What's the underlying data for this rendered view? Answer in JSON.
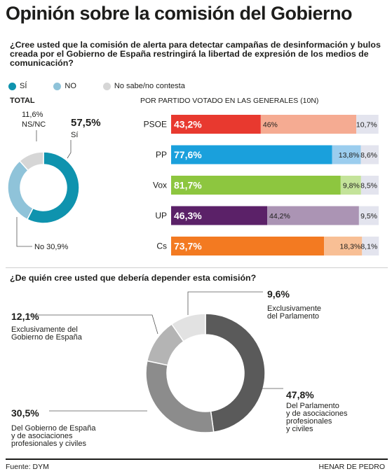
{
  "title": "Opinión sobre la comisión del Gobierno",
  "question1": "¿Cree usted que la comisión de alerta para detectar campañas de desinformación y bulos creada por el Gobierno de España restringirá la libertad de expresión de los medios de comunicación?",
  "legend": [
    {
      "label": "SÍ",
      "color": "#0f93ae"
    },
    {
      "label": "NO",
      "color": "#8fc3d9"
    },
    {
      "label": "No sabe/no contesta",
      "color": "#d6d6d6"
    }
  ],
  "total_label": "TOTAL",
  "party_header": "POR PARTIDO VOTADO EN LAS GENERALES (10N)",
  "question2": "¿De quién cree usted que debería depender esta comisión?",
  "source": "Fuente: DYM",
  "credit": "HENAR DE PEDRO",
  "chart_data": [
    {
      "type": "pie",
      "variant": "donut",
      "title": "TOTAL",
      "slices": [
        {
          "label": "Sí",
          "value": 57.5,
          "value_label": "57,5%",
          "color": "#0f93ae"
        },
        {
          "label": "No",
          "value": 30.9,
          "value_label": "30,9%",
          "color": "#8fc3d9"
        },
        {
          "label": "NS/NC",
          "value": 11.6,
          "value_label": "11,6%",
          "color": "#d6d6d6"
        }
      ]
    },
    {
      "type": "bar",
      "orientation": "horizontal",
      "stacked": true,
      "title": "POR PARTIDO VOTADO EN LAS GENERALES (10N)",
      "categories": [
        "PSOE",
        "PP",
        "Vox",
        "UP",
        "Cs"
      ],
      "series": [
        {
          "name": "Sí",
          "values": [
            43.2,
            77.6,
            81.7,
            46.3,
            73.7
          ],
          "labels": [
            "43,2%",
            "77,6%",
            "81,7%",
            "46,3%",
            "73,7%"
          ],
          "colors": [
            "#e8392f",
            "#1aa0dc",
            "#8dc63f",
            "#5b2168",
            "#f37a21"
          ]
        },
        {
          "name": "No",
          "values": [
            46.0,
            13.8,
            9.8,
            44.2,
            18.3
          ],
          "labels": [
            "46%",
            "13,8%",
            "9,8%",
            "44,2%",
            "18,3%"
          ],
          "colors": [
            "#f5ab92",
            "#9bcdee",
            "#c4e39a",
            "#ab94b4",
            "#f8bf95"
          ]
        },
        {
          "name": "NS/NC",
          "values": [
            10.7,
            8.6,
            8.5,
            9.5,
            8.1
          ],
          "labels": [
            "10,7%",
            "8,6%",
            "8,5%",
            "9,5%",
            "8,1%"
          ],
          "color": "#e3e4ee"
        }
      ]
    },
    {
      "type": "pie",
      "variant": "donut",
      "title": "¿De quién cree usted que debería depender esta comisión?",
      "slices": [
        {
          "label": "Del Parlamento y de asociaciones profesionales y civiles",
          "value": 47.8,
          "value_label": "47,8%",
          "color": "#5a5a5a"
        },
        {
          "label": "Del Gobierno de España y de asociaciones profesionales y civiles",
          "value": 30.5,
          "value_label": "30,5%",
          "color": "#8c8c8c"
        },
        {
          "label": "Exclusivamente del Gobierno de España",
          "value": 12.1,
          "value_label": "12,1%",
          "color": "#b4b4b4"
        },
        {
          "label": "Exclusivamente del Parlamento",
          "value": 9.6,
          "value_label": "9,6%",
          "color": "#e2e2e2"
        }
      ]
    }
  ]
}
